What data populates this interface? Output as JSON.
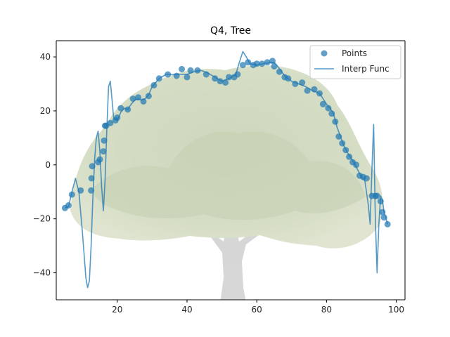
{
  "chart_data": {
    "type": "scatter",
    "title": "Q4, Tree",
    "xlabel": "",
    "ylabel": "",
    "xlim": [
      2.5,
      102.5
    ],
    "ylim": [
      -50,
      46
    ],
    "xticks": [
      20,
      40,
      60,
      80,
      100
    ],
    "yticks": [
      -40,
      -20,
      0,
      20,
      40
    ],
    "grid": false,
    "legend": {
      "placement": "top-right",
      "entries": [
        "Points",
        "Interp Func"
      ]
    },
    "colors": {
      "series": "#1f77b4",
      "axes": "#000000",
      "text": "#262626"
    },
    "background_image": "tree-illustration",
    "series": [
      {
        "name": "Points",
        "kind": "scatter",
        "x": [
          5.0,
          6.0,
          7.0,
          9.5,
          12.5,
          12.6,
          12.8,
          14.5,
          15.0,
          16.0,
          16.2,
          16.5,
          16.8,
          18.0,
          19.5,
          20.0,
          21.0,
          23.0,
          24.5,
          26.0,
          27.5,
          29.0,
          30.5,
          32.0,
          34.5,
          37.0,
          38.5,
          40.0,
          41.0,
          43.0,
          45.5,
          48.0,
          49.5,
          51.0,
          52.0,
          53.5,
          54.5,
          56.0,
          57.5,
          59.0,
          60.0,
          61.5,
          63.0,
          64.5,
          65.0,
          66.5,
          68.0,
          69.0,
          71.0,
          73.0,
          74.5,
          76.5,
          78.0,
          79.0,
          80.5,
          81.5,
          82.5,
          83.5,
          84.5,
          85.5,
          86.5,
          87.5,
          88.5,
          89.5,
          90.5,
          91.5,
          93.0,
          94.0,
          94.5,
          95.5,
          96.0,
          96.5,
          97.5
        ],
        "y": [
          -16.0,
          -15.0,
          -11.0,
          -9.5,
          -9.5,
          -5.0,
          -0.5,
          1.0,
          2.0,
          5.0,
          9.0,
          14.5,
          14.5,
          15.5,
          16.5,
          17.5,
          21.0,
          20.5,
          24.5,
          25.0,
          23.5,
          25.5,
          29.5,
          32.0,
          33.5,
          33.0,
          35.5,
          32.5,
          35.0,
          35.0,
          33.5,
          32.0,
          31.0,
          30.5,
          32.5,
          32.5,
          33.5,
          37.0,
          38.0,
          37.0,
          37.5,
          37.5,
          38.0,
          38.5,
          36.5,
          34.5,
          32.5,
          32.0,
          30.0,
          30.5,
          27.5,
          28.0,
          26.5,
          22.5,
          21.0,
          19.0,
          16.0,
          10.5,
          8.0,
          5.5,
          3.0,
          1.0,
          0.0,
          -4.0,
          -4.5,
          -5.0,
          -11.5,
          -11.5,
          -11.5,
          -13.5,
          -17.5,
          -19.5,
          -22.0
        ]
      },
      {
        "name": "Interp Func",
        "kind": "line",
        "x": [
          5,
          6,
          7,
          8,
          9,
          10,
          11,
          11.5,
          12,
          12.5,
          13,
          13.5,
          14,
          14.5,
          15,
          15.5,
          16,
          16.5,
          17,
          17.5,
          18,
          18.5,
          19,
          20,
          21,
          22,
          23,
          24,
          25,
          26,
          27,
          28,
          29,
          30,
          32,
          34,
          36,
          38,
          40,
          42,
          44,
          46,
          48,
          50,
          52,
          54,
          55,
          56,
          57,
          58,
          60,
          62,
          64,
          65,
          66,
          68,
          70,
          72,
          74,
          76,
          78,
          80,
          81,
          82,
          83,
          84,
          85,
          86,
          87,
          88,
          89,
          90,
          91,
          92,
          92.5,
          93,
          93.5,
          94,
          94.5,
          95,
          95.5,
          96,
          96.5,
          97,
          97.5
        ],
        "y": [
          -16.0,
          -15.5,
          -10.0,
          -5.0,
          -10.0,
          -25.0,
          -42.0,
          -45.5,
          -43.0,
          -30.0,
          -12.0,
          2.0,
          10.0,
          12.5,
          5.0,
          -8.0,
          -17.0,
          -6.0,
          13.0,
          29.0,
          31.0,
          24.0,
          17.0,
          16.5,
          19.5,
          21.0,
          20.5,
          22.5,
          24.0,
          24.5,
          24.0,
          24.5,
          26.0,
          29.0,
          32.0,
          33.5,
          33.5,
          33.5,
          33.5,
          34.5,
          35.0,
          34.0,
          32.5,
          31.0,
          32.0,
          33.5,
          38.0,
          42.0,
          40.0,
          37.5,
          37.0,
          37.5,
          38.0,
          38.0,
          36.5,
          33.0,
          31.0,
          30.0,
          29.0,
          27.5,
          26.5,
          22.5,
          21.0,
          19.0,
          14.0,
          10.5,
          7.0,
          4.5,
          2.5,
          0.5,
          -2.0,
          -4.5,
          -6.0,
          -15.0,
          -22.0,
          -2.0,
          15.0,
          -20.0,
          -40.0,
          -22.0,
          -11.5,
          -13.0,
          -17.5,
          -19.5,
          -22.0
        ]
      }
    ]
  }
}
